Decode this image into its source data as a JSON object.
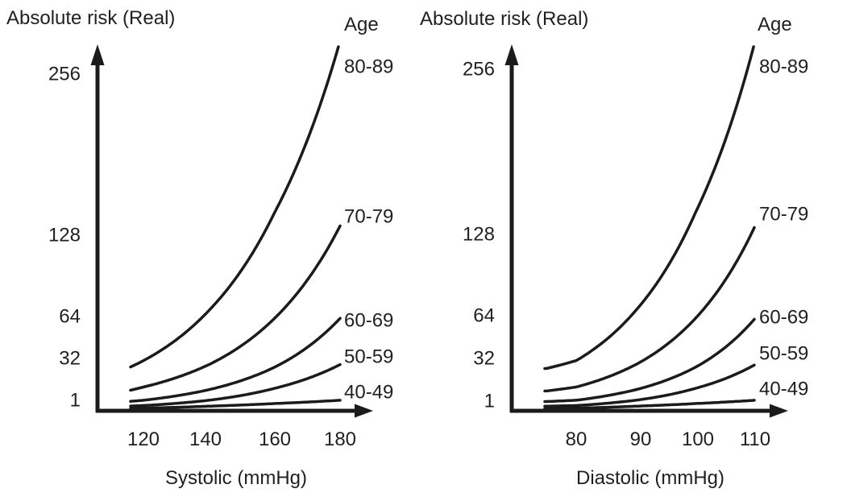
{
  "figure": {
    "background": "#ffffff",
    "text_color": "#231f20",
    "line_color": "#1b1b1b"
  },
  "chart_data": [
    {
      "type": "line",
      "panel": "left",
      "title": "Absolute risk (Real)",
      "legend_title": "Age",
      "xlabel": "Systolic (mmHg)",
      "ylabel": "Absolute risk (Real)",
      "y_scale": "linear (Real)",
      "grid": false,
      "legend_position": "labels-right-of-curves",
      "x_ticks": [
        120,
        140,
        160,
        180
      ],
      "y_ticks": [
        256,
        128,
        64,
        32,
        1
      ],
      "xlim": [
        113,
        184
      ],
      "ylim": [
        0,
        285
      ],
      "x": [
        115,
        120,
        140,
        160,
        180
      ],
      "series": [
        {
          "name": "80-89",
          "values": [
            32,
            38,
            76,
            150,
            280
          ]
        },
        {
          "name": "70-79",
          "values": [
            15,
            18,
            35,
            70,
            140
          ]
        },
        {
          "name": "60-69",
          "values": [
            7,
            8,
            16,
            33,
            70
          ]
        },
        {
          "name": "50-59",
          "values": [
            3.5,
            4,
            8,
            17,
            35
          ]
        },
        {
          "name": "40-49",
          "values": [
            1.8,
            2,
            3.5,
            5.5,
            8
          ]
        }
      ]
    },
    {
      "type": "line",
      "panel": "right",
      "title": "Absolute risk (Real)",
      "legend_title": "Age",
      "xlabel": "Diastolic (mmHg)",
      "ylabel": "Absolute risk (Real)",
      "y_scale": "linear (Real)",
      "grid": false,
      "legend_position": "labels-right-of-curves",
      "x_ticks": [
        80,
        90,
        100,
        110
      ],
      "y_ticks": [
        256,
        128,
        64,
        32,
        1
      ],
      "xlim": [
        73,
        112
      ],
      "ylim": [
        0,
        285
      ],
      "x": [
        75,
        80,
        90,
        100,
        110
      ],
      "series": [
        {
          "name": "80-89",
          "values": [
            32,
            38,
            76,
            150,
            280
          ]
        },
        {
          "name": "70-79",
          "values": [
            15,
            18,
            35,
            70,
            140
          ]
        },
        {
          "name": "60-69",
          "values": [
            7,
            8,
            16,
            33,
            70
          ]
        },
        {
          "name": "50-59",
          "values": [
            3.5,
            4,
            8,
            17,
            35
          ]
        },
        {
          "name": "40-49",
          "values": [
            1.8,
            2,
            3.5,
            5.5,
            8
          ]
        }
      ]
    }
  ]
}
